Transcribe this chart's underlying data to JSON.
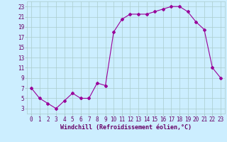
{
  "x": [
    0,
    1,
    2,
    3,
    4,
    5,
    6,
    7,
    8,
    9,
    10,
    11,
    12,
    13,
    14,
    15,
    16,
    17,
    18,
    19,
    20,
    21,
    22,
    23
  ],
  "y": [
    7,
    5,
    4,
    3,
    4.5,
    6,
    5,
    5,
    8,
    7.5,
    18,
    20.5,
    21.5,
    21.5,
    21.5,
    22,
    22.5,
    23,
    23,
    22,
    20,
    18.5,
    11,
    9
  ],
  "line_color": "#990099",
  "marker": "D",
  "marker_size": 2,
  "bg_color": "#cceeff",
  "grid_color": "#aacccc",
  "xlabel": "Windchill (Refroidissement éolien,°C)",
  "xlabel_color": "#660066",
  "xlabel_fontsize": 6.0,
  "ylabel_ticks": [
    3,
    5,
    7,
    9,
    11,
    13,
    15,
    17,
    19,
    21,
    23
  ],
  "xlim": [
    -0.5,
    23.5
  ],
  "ylim": [
    2,
    24
  ],
  "tick_color": "#660066",
  "tick_fontsize": 5.5
}
